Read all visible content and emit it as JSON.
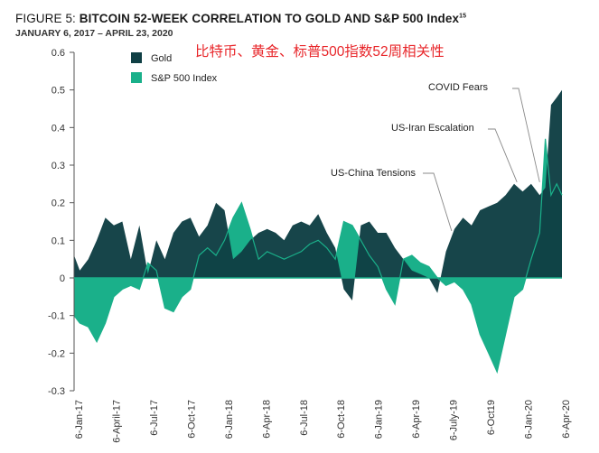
{
  "header": {
    "title_lead": "FIGURE 5: ",
    "title_main": "BITCOIN 52-WEEK CORRELATION TO GOLD AND S&P 500 Index",
    "title_sup": "15",
    "subtitle": "JANUARY 6, 2017 – APRIL 23, 2020",
    "overlay_chinese": "比特币、黄金、标普500指数52周相关性"
  },
  "colors": {
    "gold": "#0f3f44",
    "sp500": "#1ab08a",
    "annotation_line": "#888888"
  },
  "chart_data": {
    "type": "area",
    "title": "BITCOIN 52-WEEK CORRELATION TO GOLD AND S&P 500 Index",
    "subtitle": "JANUARY 6, 2017 – APRIL 23, 2020",
    "ylim": [
      -0.3,
      0.6
    ],
    "yticks": [
      "0.6",
      "0.5",
      "0.4",
      "0.3",
      "0.2",
      "0.1",
      "0",
      "-0.1",
      "-0.2",
      "-0.3"
    ],
    "xticks": [
      "6-Jan-17",
      "6-April-17",
      "6-Jul-17",
      "6-Oct-17",
      "6-Jan-18",
      "6-Apr-18",
      "6-Jul-18",
      "6-Oct-18",
      "6-Jan-19",
      "6-Apr-19",
      "6-July-19",
      "6-Oct19",
      "6-Jan-20",
      "6-Apr-20"
    ],
    "legend": {
      "position": "top-left",
      "items": [
        "Gold",
        "S&P 500 Index"
      ]
    },
    "grid": false,
    "series": [
      {
        "name": "Gold",
        "x": [
          "2017-01-06",
          "2017-01-20",
          "2017-02-10",
          "2017-03-03",
          "2017-03-24",
          "2017-04-14",
          "2017-05-05",
          "2017-05-26",
          "2017-06-16",
          "2017-07-07",
          "2017-07-28",
          "2017-08-18",
          "2017-09-08",
          "2017-09-29",
          "2017-10-20",
          "2017-11-10",
          "2017-12-01",
          "2017-12-22",
          "2018-01-12",
          "2018-02-02",
          "2018-02-23",
          "2018-03-16",
          "2018-04-06",
          "2018-04-27",
          "2018-05-18",
          "2018-06-08",
          "2018-06-29",
          "2018-07-20",
          "2018-08-10",
          "2018-08-31",
          "2018-09-21",
          "2018-10-12",
          "2018-11-02",
          "2018-11-23",
          "2018-12-14",
          "2019-01-04",
          "2019-01-25",
          "2019-02-15",
          "2019-03-08",
          "2019-03-29",
          "2019-04-19",
          "2019-05-10",
          "2019-05-31",
          "2019-06-21",
          "2019-07-12",
          "2019-08-02",
          "2019-08-23",
          "2019-09-13",
          "2019-10-04",
          "2019-10-25",
          "2019-11-15",
          "2019-12-06",
          "2019-12-27",
          "2020-01-17",
          "2020-02-07",
          "2020-02-28",
          "2020-03-13",
          "2020-03-27",
          "2020-04-10",
          "2020-04-23"
        ],
        "values": [
          0.06,
          0.02,
          0.05,
          0.1,
          0.16,
          0.14,
          0.15,
          0.05,
          0.14,
          0.01,
          0.1,
          0.05,
          0.12,
          0.15,
          0.16,
          0.11,
          0.14,
          0.2,
          0.18,
          0.05,
          0.07,
          0.1,
          0.12,
          0.13,
          0.12,
          0.1,
          0.14,
          0.15,
          0.14,
          0.17,
          0.12,
          0.08,
          -0.03,
          -0.06,
          0.14,
          0.15,
          0.12,
          0.12,
          0.08,
          0.05,
          0.02,
          0.01,
          0.0,
          -0.04,
          0.07,
          0.13,
          0.16,
          0.14,
          0.18,
          0.19,
          0.2,
          0.22,
          0.25,
          0.23,
          0.25,
          0.22,
          0.24,
          0.46,
          0.48,
          0.5
        ]
      },
      {
        "name": "S&P 500 Index",
        "x": [
          "2017-01-06",
          "2017-01-20",
          "2017-02-10",
          "2017-03-03",
          "2017-03-24",
          "2017-04-14",
          "2017-05-05",
          "2017-05-26",
          "2017-06-16",
          "2017-07-07",
          "2017-07-28",
          "2017-08-18",
          "2017-09-08",
          "2017-09-29",
          "2017-10-20",
          "2017-11-10",
          "2017-12-01",
          "2017-12-22",
          "2018-01-12",
          "2018-02-02",
          "2018-02-23",
          "2018-03-16",
          "2018-04-06",
          "2018-04-27",
          "2018-05-18",
          "2018-06-08",
          "2018-06-29",
          "2018-07-20",
          "2018-08-10",
          "2018-08-31",
          "2018-09-21",
          "2018-10-12",
          "2018-11-02",
          "2018-11-23",
          "2018-12-14",
          "2019-01-04",
          "2019-01-25",
          "2019-02-15",
          "2019-03-08",
          "2019-03-29",
          "2019-04-19",
          "2019-05-10",
          "2019-05-31",
          "2019-06-21",
          "2019-07-12",
          "2019-08-02",
          "2019-08-23",
          "2019-09-13",
          "2019-10-04",
          "2019-10-25",
          "2019-11-15",
          "2019-12-06",
          "2019-12-27",
          "2020-01-17",
          "2020-02-07",
          "2020-02-28",
          "2020-03-13",
          "2020-03-27",
          "2020-04-10",
          "2020-04-23"
        ],
        "values": [
          -0.1,
          -0.12,
          -0.13,
          -0.17,
          -0.12,
          -0.05,
          -0.03,
          -0.02,
          -0.03,
          0.04,
          0.02,
          -0.08,
          -0.09,
          -0.05,
          -0.03,
          0.06,
          0.08,
          0.06,
          0.1,
          0.16,
          0.2,
          0.13,
          0.05,
          0.07,
          0.06,
          0.05,
          0.06,
          0.07,
          0.09,
          0.1,
          0.08,
          0.05,
          0.15,
          0.14,
          0.1,
          0.06,
          0.03,
          -0.03,
          -0.07,
          0.05,
          0.06,
          0.04,
          0.03,
          0.0,
          -0.02,
          -0.01,
          -0.03,
          -0.07,
          -0.15,
          -0.2,
          -0.25,
          -0.15,
          -0.05,
          -0.03,
          0.05,
          0.12,
          0.37,
          0.22,
          0.25,
          0.22
        ]
      }
    ],
    "annotations": [
      {
        "label": "COVID Fears",
        "date": "2020-02-28",
        "value": 0.25
      },
      {
        "label": "US-Iran Escalation",
        "date": "2020-01-03",
        "value": 0.25
      },
      {
        "label": "US-China Tensions",
        "date": "2019-07-26",
        "value": 0.12
      }
    ]
  }
}
